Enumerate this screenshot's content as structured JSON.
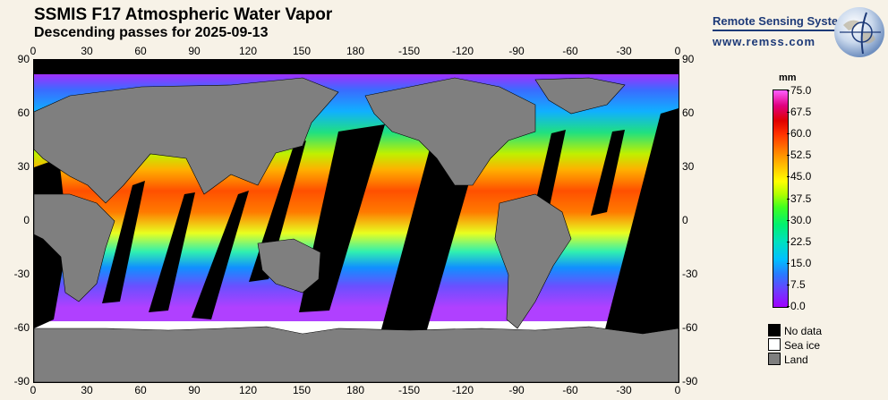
{
  "header": {
    "title": "SSMIS F17 Atmospheric Water Vapor",
    "subtitle": "Descending passes for 2025-09-13"
  },
  "brand": {
    "name": "Remote Sensing Systems",
    "url": "www.remss.com",
    "logo_icon": "globe-logo-icon"
  },
  "axes": {
    "top_ticks": [
      "0",
      "30",
      "60",
      "90",
      "120",
      "150",
      "180",
      "-150",
      "-120",
      "-90",
      "-60",
      "-30",
      "0"
    ],
    "bottom_ticks": [
      "0",
      "30",
      "60",
      "90",
      "120",
      "150",
      "180",
      "-150",
      "-120",
      "-90",
      "-60",
      "-30",
      "0"
    ],
    "left_ticks": [
      "90",
      "60",
      "30",
      "0",
      "-30",
      "-60",
      "-90"
    ],
    "right_ticks": [
      "90",
      "60",
      "30",
      "0",
      "-30",
      "-60",
      "-90"
    ]
  },
  "colorbar": {
    "unit": "mm",
    "labels": [
      "75.0",
      "67.5",
      "60.0",
      "52.5",
      "45.0",
      "37.5",
      "30.0",
      "22.5",
      "15.0",
      "7.5",
      "0.0"
    ]
  },
  "legend": [
    {
      "label": "No data",
      "color": "#000000"
    },
    {
      "label": "Sea ice",
      "color": "#ffffff"
    },
    {
      "label": "Land",
      "color": "#7f7f7f"
    }
  ]
}
